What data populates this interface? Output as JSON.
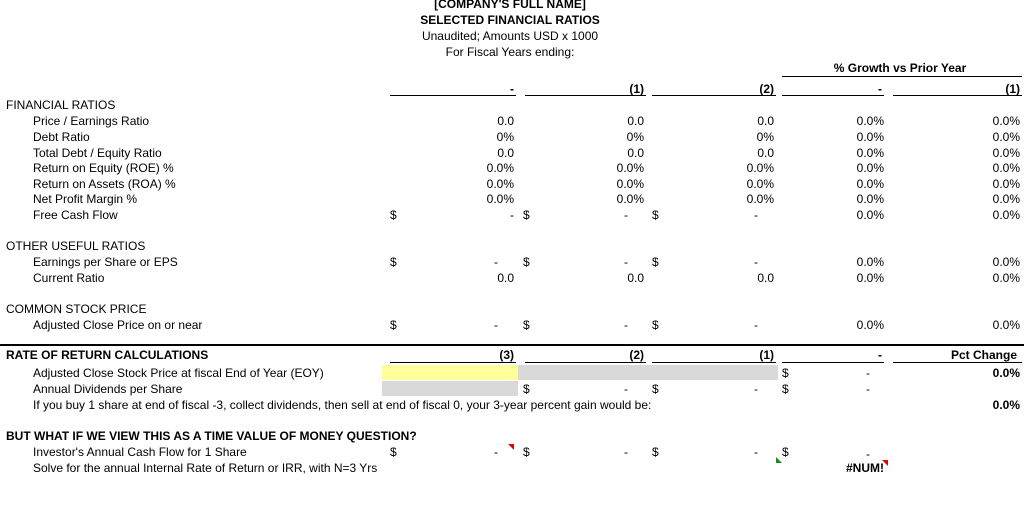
{
  "header": {
    "company": "[COMPANY'S FULL NAME]",
    "title": "SELECTED FINANCIAL RATIOS",
    "subtitle": "Unaudited; Amounts USD x 1000",
    "fiscal_label": "For Fiscal Years ending:",
    "growth_label": "% Growth vs Prior Year"
  },
  "year_cols": [
    "-",
    "(1)",
    "(2)",
    "-",
    "(1)"
  ],
  "financial": {
    "heading": "FINANCIAL RATIOS",
    "rows": [
      {
        "label": "Price / Earnings Ratio",
        "c1": "0.0",
        "c2": "0.0",
        "c3": "0.0",
        "g1": "0.0%",
        "g2": "0.0%"
      },
      {
        "label": "Debt Ratio",
        "c1": "0%",
        "c2": "0%",
        "c3": "0%",
        "g1": "0.0%",
        "g2": "0.0%"
      },
      {
        "label": "Total Debt / Equity Ratio",
        "c1": "0.0",
        "c2": "0.0",
        "c3": "0.0",
        "g1": "0.0%",
        "g2": "0.0%"
      },
      {
        "label": "Return on Equity (ROE) %",
        "c1": "0.0%",
        "c2": "0.0%",
        "c3": "0.0%",
        "g1": "0.0%",
        "g2": "0.0%"
      },
      {
        "label": "Return on Assets (ROA) %",
        "c1": "0.0%",
        "c2": "0.0%",
        "c3": "0.0%",
        "g1": "0.0%",
        "g2": "0.0%"
      },
      {
        "label": "Net Profit Margin %",
        "c1": "0.0%",
        "c2": "0.0%",
        "c3": "0.0%",
        "g1": "0.0%",
        "g2": "0.0%"
      }
    ],
    "fcf": {
      "label": "Free Cash Flow",
      "cur": "$",
      "c1": "-",
      "c2": "-",
      "c3": "-",
      "g1": "0.0%",
      "g2": "0.0%"
    }
  },
  "other": {
    "heading": "OTHER USEFUL RATIOS",
    "eps": {
      "label": "Earnings per Share or EPS",
      "cur": "$",
      "c1": "-",
      "c2": "-",
      "c3": "-",
      "g1": "0.0%",
      "g2": "0.0%"
    },
    "current": {
      "label": "Current Ratio",
      "c1": "0.0",
      "c2": "0.0",
      "c3": "0.0",
      "g1": "0.0%",
      "g2": "0.0%"
    }
  },
  "stock": {
    "heading": "COMMON STOCK PRICE",
    "row": {
      "label": "Adjusted Close Price on or near",
      "cur": "$",
      "c1": "-",
      "c2": "-",
      "c3": "-",
      "g1": "0.0%",
      "g2": "0.0%"
    }
  },
  "ror": {
    "heading": "RATE OF RETURN CALCULATIONS",
    "cols": [
      "(3)",
      "(2)",
      "(1)",
      "-"
    ],
    "pct_change": "Pct Change",
    "eoy_label": "Adjusted Close Stock Price at fiscal End of Year (EOY)",
    "eoy_cur": "$",
    "eoy_val": "-",
    "eoy_pct": "0.0%",
    "div_label": "Annual Dividends per Share",
    "div_cur": "$",
    "div_c2": "-",
    "div_c3": "-",
    "div_val": "-",
    "gain_label": "If you buy 1 share at end of fiscal -3, collect dividends, then sell at end of fiscal 0, your 3-year percent gain would be:",
    "gain_val": "0.0%"
  },
  "tvm": {
    "heading": "BUT WHAT IF WE VIEW THIS AS A TIME VALUE OF MONEY QUESTION?",
    "cf_label": "Investor's Annual Cash Flow for 1 Share",
    "cur": "$",
    "c1": "-",
    "c2": "-",
    "c3": "-",
    "c4": "-",
    "irr_label": "Solve for the annual Internal Rate of Return or IRR, with N=3 Yrs",
    "irr_val": "#NUM!"
  }
}
